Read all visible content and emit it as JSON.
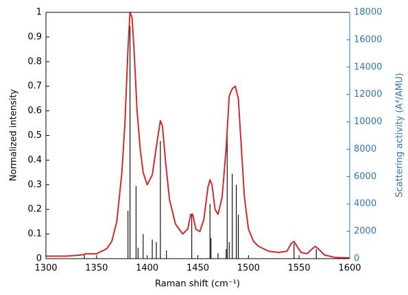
{
  "chart_data": {
    "type": "line",
    "xlabel": "Raman shift (cm⁻¹)",
    "ylabel": "Normalized intensity",
    "y2label": "Scattering activity (A⁴/AMU)",
    "y2color": "#2f75b5",
    "xlim": [
      1300,
      1600
    ],
    "xticks": [
      1300,
      1350,
      1400,
      1450,
      1500,
      1550,
      1600
    ],
    "ylim": [
      0,
      1
    ],
    "yticks": [
      0,
      0.1,
      0.2,
      0.3,
      0.4,
      0.5,
      0.6,
      0.7,
      0.8,
      0.9,
      1
    ],
    "y2lim": [
      0,
      18000
    ],
    "y2ticks": [
      0,
      2000,
      4000,
      6000,
      8000,
      10000,
      12000,
      14000,
      16000,
      18000
    ],
    "series": [
      {
        "type": "line",
        "color": "#d62728",
        "x": [
          1300,
          1320,
          1335,
          1340,
          1350,
          1360,
          1365,
          1370,
          1375,
          1378,
          1381,
          1383,
          1385,
          1387,
          1390,
          1393,
          1396,
          1400,
          1405,
          1410,
          1413,
          1415,
          1418,
          1422,
          1428,
          1435,
          1440,
          1443,
          1445,
          1448,
          1452,
          1456,
          1460,
          1462,
          1464,
          1467,
          1470,
          1474,
          1478,
          1481,
          1484,
          1487,
          1490,
          1493,
          1496,
          1500,
          1505,
          1510,
          1520,
          1530,
          1538,
          1542,
          1545,
          1548,
          1552,
          1558,
          1563,
          1566,
          1569,
          1575,
          1585,
          1600
        ],
        "values": [
          0.01,
          0.01,
          0.015,
          0.02,
          0.02,
          0.04,
          0.07,
          0.15,
          0.35,
          0.55,
          0.85,
          1.0,
          0.98,
          0.85,
          0.6,
          0.45,
          0.35,
          0.3,
          0.34,
          0.48,
          0.56,
          0.54,
          0.4,
          0.24,
          0.14,
          0.1,
          0.12,
          0.18,
          0.18,
          0.12,
          0.11,
          0.16,
          0.29,
          0.32,
          0.3,
          0.2,
          0.18,
          0.25,
          0.45,
          0.66,
          0.69,
          0.7,
          0.65,
          0.45,
          0.25,
          0.12,
          0.07,
          0.05,
          0.03,
          0.025,
          0.03,
          0.06,
          0.07,
          0.05,
          0.025,
          0.02,
          0.04,
          0.05,
          0.04,
          0.015,
          0.005,
          0.003
        ]
      },
      {
        "type": "stem",
        "axis": "y2",
        "color": "#111111",
        "x": [
          1338,
          1381,
          1383,
          1389,
          1391,
          1396,
          1405,
          1409,
          1413,
          1419,
          1444,
          1462,
          1463,
          1470,
          1478,
          1479,
          1481,
          1484,
          1488,
          1490,
          1545,
          1567
        ],
        "values": [
          300,
          3500,
          17000,
          5300,
          800,
          1800,
          1400,
          1200,
          8600,
          600,
          3200,
          4000,
          1500,
          400,
          700,
          9000,
          1200,
          6200,
          5400,
          3200,
          1100,
          700
        ]
      }
    ]
  }
}
